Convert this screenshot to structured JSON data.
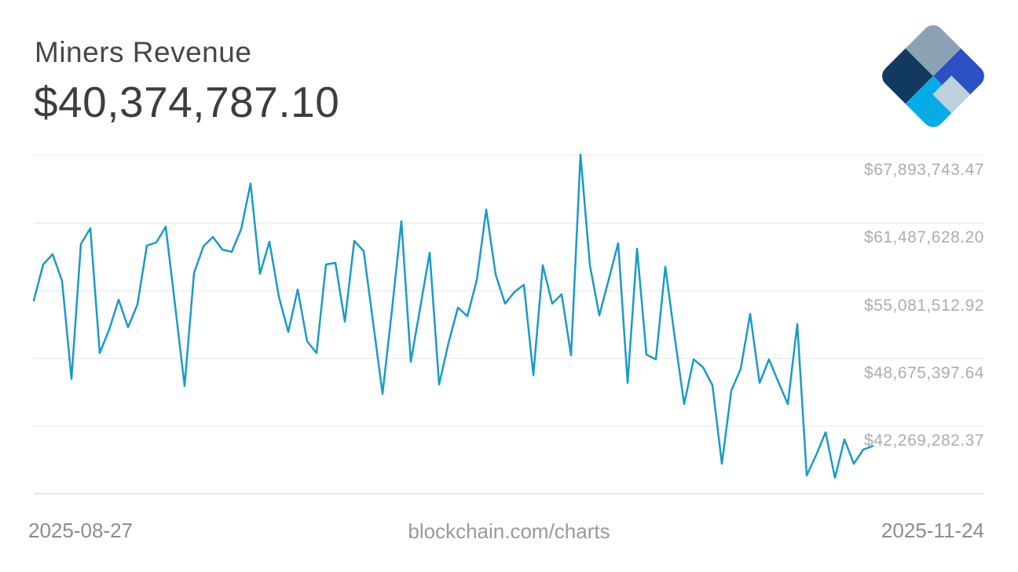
{
  "header": {
    "title": "Miners Revenue",
    "value": "$40,374,787.10"
  },
  "footer": {
    "start_date": "2025-08-27",
    "center": "blockchain.com/charts",
    "end_date": "2025-11-24"
  },
  "logo": {
    "name": "blockchain.com diamond logo",
    "colors": {
      "top": "#8da3b5",
      "right": "#2b50c3",
      "left": "#123a60",
      "bottom": "#06ace5",
      "accent": "#bdd0dc"
    }
  },
  "chart_data": {
    "type": "line",
    "title": "Miners Revenue",
    "unit": "USD per day",
    "x_start": "2025-08-27",
    "x_end": "2025-11-24",
    "grid": true,
    "legend": false,
    "line_color": "#1b9ac8",
    "grid_color": "#ededed",
    "axis_color": "#dcdcdc",
    "ylim": [
      35863167.1,
      67893743.47
    ],
    "y_ticks": [
      67893743.47,
      61487628.2,
      55081512.92,
      48675397.64,
      42269282.37
    ],
    "y_tick_labels": [
      "$67,893,743.47",
      "$61,487,628.20",
      "$55,081,512.92",
      "$48,675,397.64",
      "$42,269,282.37"
    ],
    "last_value": 40374787.1,
    "values": [
      54152868,
      57569518,
      58535093,
      56009743,
      46725368,
      59500668,
      60986168,
      49176443,
      51404693,
      54227143,
      51627518,
      53781493,
      59352118,
      59649218,
      61134718,
      53632943,
      46056893,
      56752493,
      59277843,
      60169143,
      58980743,
      58757918,
      60911893,
      65219843,
      56678218,
      59723493,
      54524243,
      51181868,
      55192718,
      50290568,
      49176443,
      57569518,
      57718068,
      52147443,
      59797768,
      58832193,
      52073168,
      45314143,
      53261568,
      61654643,
      48359418,
      53484393,
      58683643,
      46205443,
      50142018,
      53484393,
      52667368,
      56084018,
      62768768,
      56603943,
      53855768,
      54969893,
      55638368,
      47096743,
      57495243,
      53855768,
      54747068,
      48953618,
      67968018,
      57495243,
      52741643,
      56158293,
      59574943,
      46353993,
      59055018,
      49027893,
      48582243,
      57346693,
      50661943,
      44348568,
      48582243,
      47839493,
      46131168,
      38703668,
      45611243,
      47690943,
      52890193,
      46353993,
      48582243,
      46428268,
      44348568,
      51924618,
      37589543,
      39520693,
      41674668,
      37366718,
      41006193,
      38703668,
      40040618,
      40374787.1
    ]
  }
}
